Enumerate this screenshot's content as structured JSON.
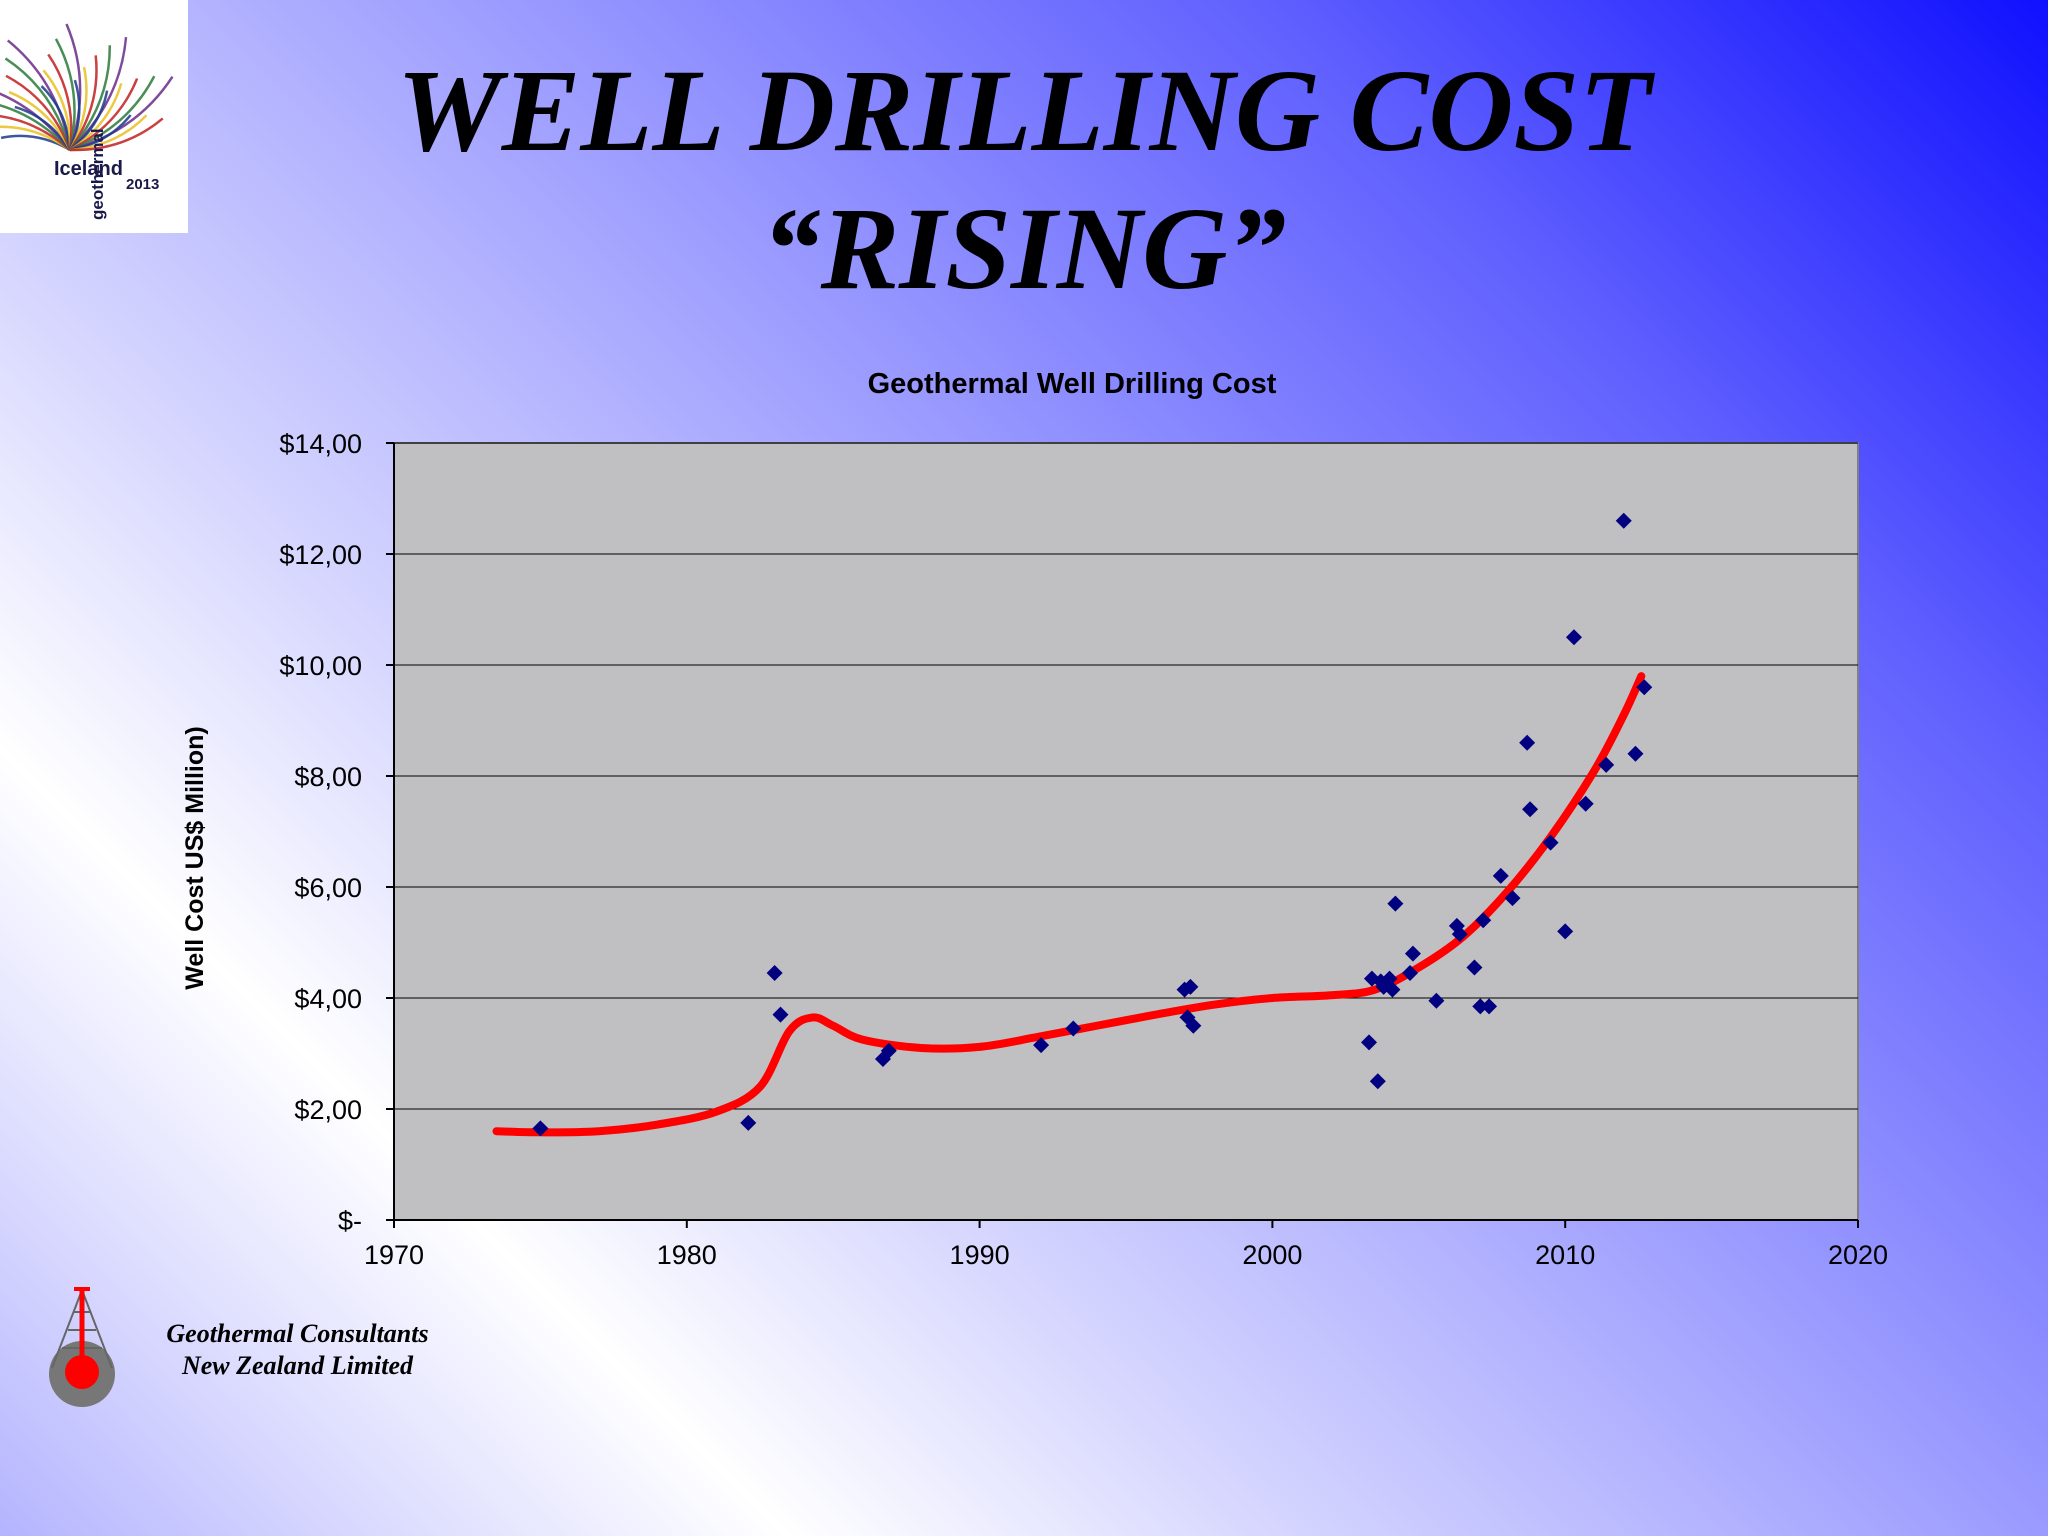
{
  "slide": {
    "title_line1": "WELL DRILLING COST",
    "title_line2": "“RISING”"
  },
  "logo": {
    "word": "Iceland",
    "year": "2013",
    "vertical_word": "geothermal",
    "colors": [
      "#1b3a8c",
      "#e8c020",
      "#c02020",
      "#2a7a3a",
      "#6a2a8a"
    ]
  },
  "company": {
    "line1": "Geothermal Consultants",
    "line2": "New Zealand Limited",
    "icon": "drill-rig-icon",
    "icon_color": "#ff0000"
  },
  "chart_data": {
    "type": "scatter",
    "title": "Geothermal Well Drilling Cost",
    "xlabel": "",
    "ylabel": "Well Cost US$ Million)",
    "xlim": [
      1970,
      2020
    ],
    "ylim": [
      0,
      14
    ],
    "x_ticks": [
      1970,
      1980,
      1990,
      2000,
      2010,
      2020
    ],
    "x_tick_labels": [
      "1970",
      "1980",
      "1990",
      "2000",
      "2010",
      "2020"
    ],
    "y_ticks": [
      0,
      2,
      4,
      6,
      8,
      10,
      12,
      14
    ],
    "y_tick_labels": [
      "$-",
      "$2,00",
      "$4,00",
      "$6,00",
      "$8,00",
      "$10,00",
      "$12,00",
      "$14,00"
    ],
    "grid": "horizontal",
    "plot_background": "#c0bfc1",
    "series": [
      {
        "kind": "points",
        "marker": "diamond",
        "color": "#000080",
        "points": [
          [
            1975.0,
            1.65
          ],
          [
            1982.1,
            1.75
          ],
          [
            1983.0,
            4.45
          ],
          [
            1983.2,
            3.7
          ],
          [
            1986.7,
            2.9
          ],
          [
            1986.9,
            3.05
          ],
          [
            1992.1,
            3.15
          ],
          [
            1993.2,
            3.45
          ],
          [
            1997.0,
            4.15
          ],
          [
            1997.1,
            3.65
          ],
          [
            1997.2,
            4.2
          ],
          [
            1997.3,
            3.5
          ],
          [
            2003.3,
            3.2
          ],
          [
            2003.4,
            4.35
          ],
          [
            2003.6,
            2.5
          ],
          [
            2003.7,
            4.3
          ],
          [
            2003.8,
            4.2
          ],
          [
            2004.0,
            4.35
          ],
          [
            2004.1,
            4.15
          ],
          [
            2004.2,
            5.7
          ],
          [
            2004.7,
            4.45
          ],
          [
            2004.8,
            4.8
          ],
          [
            2005.6,
            3.95
          ],
          [
            2006.3,
            5.3
          ],
          [
            2006.4,
            5.15
          ],
          [
            2006.9,
            4.55
          ],
          [
            2007.1,
            3.85
          ],
          [
            2007.2,
            5.4
          ],
          [
            2007.4,
            3.85
          ],
          [
            2007.8,
            6.2
          ],
          [
            2008.2,
            5.8
          ],
          [
            2008.7,
            8.6
          ],
          [
            2008.8,
            7.4
          ],
          [
            2009.5,
            6.8
          ],
          [
            2010.0,
            5.2
          ],
          [
            2010.3,
            10.5
          ],
          [
            2010.7,
            7.5
          ],
          [
            2011.4,
            8.2
          ],
          [
            2012.0,
            12.6
          ],
          [
            2012.4,
            8.4
          ],
          [
            2012.7,
            9.6
          ]
        ]
      },
      {
        "kind": "trend-line",
        "color": "#ff0000",
        "points": [
          [
            1973.5,
            1.6
          ],
          [
            1975.0,
            1.58
          ],
          [
            1977.0,
            1.6
          ],
          [
            1979.0,
            1.72
          ],
          [
            1981.0,
            1.95
          ],
          [
            1982.5,
            2.4
          ],
          [
            1983.5,
            3.4
          ],
          [
            1984.3,
            3.65
          ],
          [
            1985.0,
            3.5
          ],
          [
            1986.0,
            3.25
          ],
          [
            1988.0,
            3.1
          ],
          [
            1990.0,
            3.12
          ],
          [
            1992.0,
            3.3
          ],
          [
            1994.0,
            3.5
          ],
          [
            1996.0,
            3.7
          ],
          [
            1998.0,
            3.88
          ],
          [
            2000.0,
            4.0
          ],
          [
            2002.0,
            4.05
          ],
          [
            2003.5,
            4.15
          ],
          [
            2005.0,
            4.55
          ],
          [
            2006.5,
            5.1
          ],
          [
            2008.0,
            5.9
          ],
          [
            2009.5,
            6.9
          ],
          [
            2011.0,
            8.1
          ],
          [
            2012.0,
            9.1
          ],
          [
            2012.6,
            9.8
          ]
        ]
      }
    ]
  }
}
